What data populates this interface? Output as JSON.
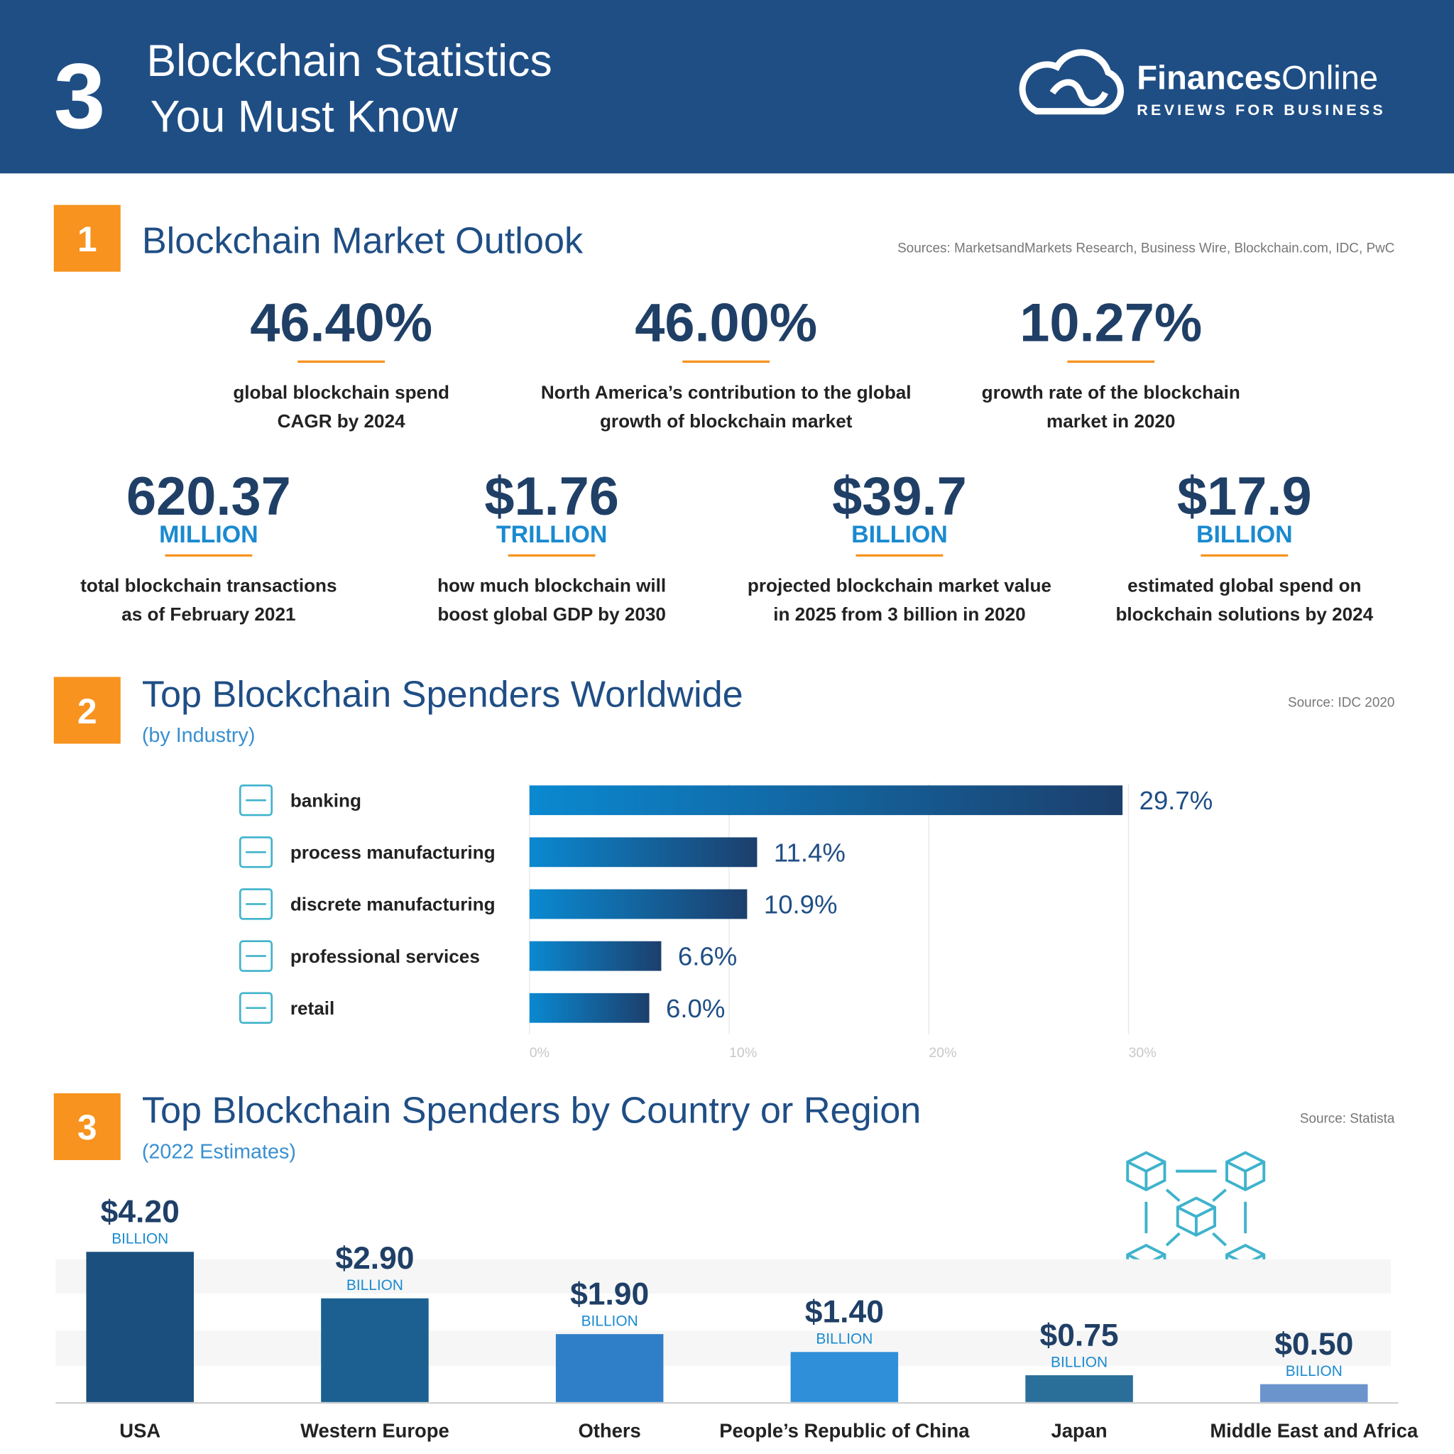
{
  "header": {
    "number": "3",
    "title_lines": [
      "Blockchain Statistics",
      "You Must Know"
    ],
    "brand_bold": "Finances",
    "brand_light": "Online",
    "tagline": "REVIEWS FOR BUSINESS"
  },
  "outlook": {
    "number": "1",
    "title": "Blockchain Market Outlook",
    "source": "Sources: MarketsandMarkets Research, Business Wire, Blockchain.com, IDC, PwC",
    "stats": [
      {
        "value": "46.40%",
        "lines": [
          "global blockchain spend",
          "CAGR by 2024"
        ]
      },
      {
        "value": "46.00%",
        "lines": [
          "North America’s contribution to the global",
          "growth of blockchain market"
        ]
      },
      {
        "value": "10.27%",
        "lines": [
          "growth rate of the blockchain",
          "market in 2020"
        ]
      },
      {
        "value": "620.37",
        "unit": "MILLION",
        "lines": [
          "total blockchain transactions",
          "as of February 2021"
        ]
      },
      {
        "value": "$1.76",
        "unit": "TRILLION",
        "lines": [
          "how much blockchain will",
          "boost global GDP by 2030"
        ]
      },
      {
        "value": "$39.7",
        "unit": "BILLION",
        "lines": [
          "projected blockchain market value",
          "in 2025 from 3 billion in 2020"
        ]
      },
      {
        "value": "$17.9",
        "unit": "BILLION",
        "lines": [
          "estimated global spend on",
          "blockchain solutions by 2024"
        ]
      }
    ]
  },
  "chart_data": [
    {
      "type": "hbar",
      "number": "2",
      "title": "Top Blockchain Spenders Worldwide",
      "subtitle": "(by Industry)",
      "source": "Source: IDC 2020",
      "categories": [
        "banking",
        "process manufacturing",
        "discrete manufacturing",
        "professional services",
        "retail"
      ],
      "values": [
        29.7,
        11.4,
        10.9,
        6.6,
        6.0
      ],
      "value_labels": [
        "29.7%",
        "11.4%",
        "10.9%",
        "6.6%",
        "6.0%"
      ],
      "xlim": [
        0,
        30
      ],
      "xticks": [
        {
          "value": 0,
          "label": "0%"
        },
        {
          "value": 10,
          "label": "10%"
        },
        {
          "value": 20,
          "label": "20%"
        },
        {
          "value": 30,
          "label": "30%"
        }
      ],
      "grid": true,
      "color": "#0a89d1",
      "color_end": "#1c3f6c"
    },
    {
      "type": "bar",
      "number": "3",
      "title": "Top Blockchain Spenders by Country or Region",
      "subtitle": "(2022 Estimates)",
      "source": "Source:  Statista",
      "categories": [
        "USA",
        "Western Europe",
        "Others",
        "People’s Republic of China",
        "Japan",
        "Middle East and Africa"
      ],
      "values": [
        4.2,
        2.9,
        1.9,
        1.4,
        0.75,
        0.5
      ],
      "value_labels": [
        "$4.20",
        "$2.90",
        "$1.90",
        "$1.40",
        "$0.75",
        "$0.50"
      ],
      "unit": "BILLION",
      "colors": [
        "#1a4f7e",
        "#1b6091",
        "#2f7fc8",
        "#2f8fd8",
        "#2a6f9a",
        "#6b93cc"
      ]
    }
  ]
}
